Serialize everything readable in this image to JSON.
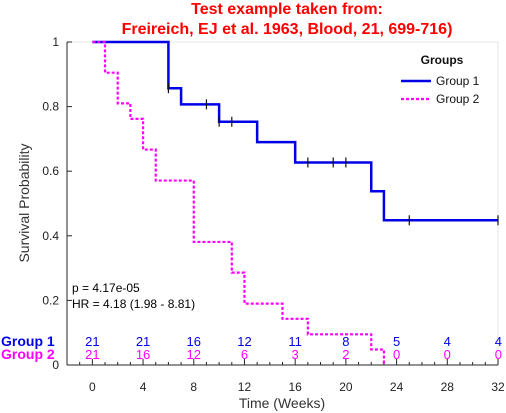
{
  "chart_data": {
    "type": "line",
    "title": [
      "Test example taken from:",
      "Freireich, EJ et al. 1963, Blood, 21, 699-716)"
    ],
    "title_color": "#ff0000",
    "xlabel": "Time (Weeks)",
    "ylabel": "Survival Probability",
    "xlim": [
      -2,
      32
    ],
    "ylim": [
      0,
      1
    ],
    "x_ticks": [
      0,
      4,
      8,
      12,
      16,
      20,
      24,
      28,
      32
    ],
    "x_tick_labels": [
      "0",
      "4",
      "8",
      "12",
      "16",
      "20",
      "24",
      "28",
      "32"
    ],
    "y_ticks": [
      0,
      0.2,
      0.4,
      0.6,
      0.8,
      1
    ],
    "y_tick_labels": [
      "0",
      "0.2",
      "0.4",
      "0.6",
      "0.8",
      "1"
    ],
    "x_minor_step": 1,
    "grid": false,
    "legend": {
      "title": "Groups",
      "position": "top-right"
    },
    "series": [
      {
        "name": "Group 1",
        "color": "#0000e6",
        "style": "solid",
        "steps": [
          {
            "t": 0,
            "s": 1.0
          },
          {
            "t": 6,
            "s": 0.857
          },
          {
            "t": 7,
            "s": 0.807
          },
          {
            "t": 10,
            "s": 0.753
          },
          {
            "t": 13,
            "s": 0.69
          },
          {
            "t": 16,
            "s": 0.627
          },
          {
            "t": 22,
            "s": 0.538
          },
          {
            "t": 23,
            "s": 0.448
          }
        ],
        "end": 32,
        "censored": [
          6,
          9,
          10,
          11,
          17,
          19,
          20,
          25,
          32
        ]
      },
      {
        "name": "Group 2",
        "color": "#ff00ff",
        "style": "dotted",
        "steps": [
          {
            "t": 0,
            "s": 1.0
          },
          {
            "t": 1,
            "s": 0.905
          },
          {
            "t": 2,
            "s": 0.81
          },
          {
            "t": 3,
            "s": 0.762
          },
          {
            "t": 4,
            "s": 0.667
          },
          {
            "t": 5,
            "s": 0.571
          },
          {
            "t": 8,
            "s": 0.381
          },
          {
            "t": 11,
            "s": 0.286
          },
          {
            "t": 12,
            "s": 0.19
          },
          {
            "t": 15,
            "s": 0.143
          },
          {
            "t": 17,
            "s": 0.095
          },
          {
            "t": 22,
            "s": 0.048
          },
          {
            "t": 23,
            "s": 0.0
          }
        ],
        "end": 23,
        "censored": []
      }
    ],
    "annotations": [
      "p = 4.17e-05",
      "HR = 4.18 (1.98 - 8.81)"
    ],
    "risk_table": {
      "times": [
        0,
        4,
        8,
        12,
        16,
        20,
        24,
        28,
        32
      ],
      "rows": [
        {
          "label": "Group 1",
          "color": "#0000e6",
          "values": [
            "21",
            "21",
            "16",
            "12",
            "11",
            "8",
            "5",
            "4",
            "4"
          ]
        },
        {
          "label": "Group 2",
          "color": "#ff00ff",
          "values": [
            "21",
            "16",
            "12",
            "6",
            "3",
            "2",
            "0",
            "0",
            "0"
          ]
        }
      ]
    }
  }
}
